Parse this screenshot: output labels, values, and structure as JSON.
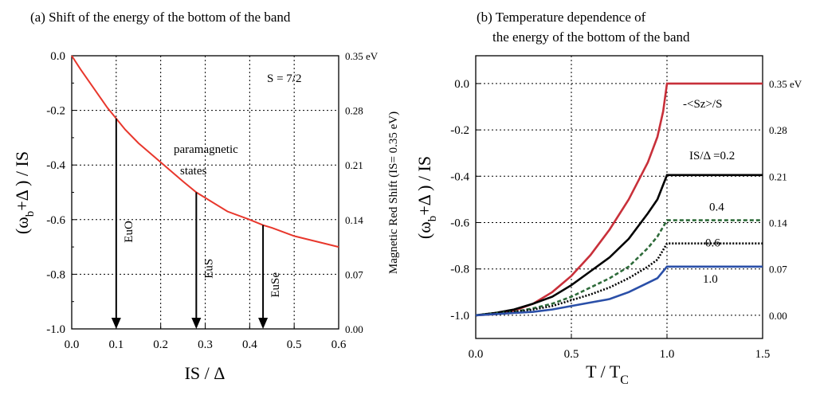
{
  "chart_data": [
    {
      "type": "line",
      "title": "(a) Shift of the energy of the bottom of the band",
      "xlabel": "IS / Δ",
      "ylabel_main": "(ω",
      "ylabel_sub": "b",
      "ylabel_rest": "+Δ ) / IS",
      "right_axis_label": "Magnetic Red Shift  (IS= 0.35 eV)",
      "xlim": [
        0,
        0.6
      ],
      "ylim": [
        -1.0,
        0.0
      ],
      "x_ticks": [
        "0.0",
        "0.1",
        "0.2",
        "0.3",
        "0.4",
        "0.5",
        "0.6"
      ],
      "y_ticks": [
        "0.0",
        "-0.2",
        "-0.4",
        "-0.6",
        "-0.8",
        "-1.0"
      ],
      "right_ticks": [
        "0.35 eV",
        "0.28",
        "0.21",
        "0.14",
        "0.07",
        "0.00"
      ],
      "grid": true,
      "series": [
        {
          "color": "#e8372c",
          "x": [
            0,
            0.02,
            0.05,
            0.08,
            0.1,
            0.12,
            0.15,
            0.2,
            0.25,
            0.28,
            0.3,
            0.35,
            0.4,
            0.43,
            0.45,
            0.5,
            0.55,
            0.6
          ],
          "y": [
            0,
            -0.05,
            -0.12,
            -0.19,
            -0.23,
            -0.27,
            -0.32,
            -0.39,
            -0.46,
            -0.5,
            -0.52,
            -0.57,
            -0.6,
            -0.62,
            -0.63,
            -0.66,
            -0.68,
            -0.7
          ]
        }
      ],
      "annotations": [
        {
          "text": "S = 7/2"
        },
        {
          "text": "paramagnetic"
        },
        {
          "text": "states"
        }
      ],
      "arrows": [
        {
          "label": "EuO",
          "x": 0.1,
          "y_from": -0.23,
          "y_to": -1.0
        },
        {
          "label": "EuS",
          "x": 0.28,
          "y_from": -0.5,
          "y_to": -1.0
        },
        {
          "label": "EuSe",
          "x": 0.43,
          "y_from": -0.62,
          "y_to": -1.0
        }
      ]
    },
    {
      "type": "line",
      "title_line1": "(b)      Temperature dependence of",
      "title_line2": "the energy of the bottom of the band",
      "xlabel_main": "T / T",
      "xlabel_sub": "C",
      "ylabel_main": "(ω",
      "ylabel_sub": "b",
      "ylabel_rest": "+Δ ) / IS",
      "xlim": [
        0,
        1.5
      ],
      "ylim": [
        -1.1,
        0.12
      ],
      "x_ticks": [
        "0.0",
        "0.5",
        "1.0",
        "1.5"
      ],
      "y_ticks": [
        "0.0",
        "-0.2",
        "-0.4",
        "-0.6",
        "-0.8",
        "-1.0"
      ],
      "right_ticks": [
        "0.35 eV",
        "0.28",
        "0.21",
        "0.14",
        "0.07",
        "0.00"
      ],
      "grid": true,
      "series": [
        {
          "label": "-<Sz>/S",
          "color": "#c8303a",
          "dash": "solid",
          "x": [
            0,
            0.1,
            0.2,
            0.3,
            0.4,
            0.5,
            0.6,
            0.7,
            0.8,
            0.9,
            0.95,
            0.98,
            1.0,
            1.5
          ],
          "y": [
            -1.0,
            -0.995,
            -0.98,
            -0.95,
            -0.9,
            -0.83,
            -0.74,
            -0.63,
            -0.5,
            -0.34,
            -0.23,
            -0.12,
            0.0,
            0.0
          ]
        },
        {
          "label": "IS/Δ =0.2",
          "color": "#000000",
          "dash": "solid",
          "x": [
            0,
            0.1,
            0.2,
            0.3,
            0.4,
            0.5,
            0.6,
            0.7,
            0.8,
            0.9,
            0.95,
            1.0,
            1.5
          ],
          "y": [
            -1.0,
            -0.99,
            -0.975,
            -0.95,
            -0.92,
            -0.87,
            -0.81,
            -0.75,
            -0.67,
            -0.56,
            -0.5,
            -0.395,
            -0.395
          ]
        },
        {
          "label": "0.4",
          "color": "#2e6b3a",
          "dash": "dash",
          "x": [
            0,
            0.1,
            0.2,
            0.3,
            0.4,
            0.5,
            0.6,
            0.7,
            0.8,
            0.9,
            0.95,
            1.0,
            1.5
          ],
          "y": [
            -1.0,
            -0.99,
            -0.985,
            -0.97,
            -0.95,
            -0.92,
            -0.88,
            -0.84,
            -0.79,
            -0.71,
            -0.66,
            -0.59,
            -0.59
          ]
        },
        {
          "label": "0.6",
          "color": "#000000",
          "dash": "dot",
          "x": [
            0,
            0.1,
            0.2,
            0.3,
            0.4,
            0.5,
            0.6,
            0.7,
            0.8,
            0.9,
            0.95,
            1.0,
            1.5
          ],
          "y": [
            -1.0,
            -0.99,
            -0.985,
            -0.975,
            -0.96,
            -0.935,
            -0.91,
            -0.88,
            -0.84,
            -0.79,
            -0.76,
            -0.69,
            -0.69
          ]
        },
        {
          "label": "1.0",
          "color": "#2a4fa8",
          "dash": "solid",
          "x": [
            0,
            0.1,
            0.2,
            0.3,
            0.4,
            0.5,
            0.6,
            0.7,
            0.8,
            0.9,
            0.95,
            1.0,
            1.5
          ],
          "y": [
            -1.0,
            -0.995,
            -0.99,
            -0.985,
            -0.975,
            -0.96,
            -0.945,
            -0.93,
            -0.9,
            -0.86,
            -0.84,
            -0.79,
            -0.79
          ]
        }
      ]
    }
  ]
}
